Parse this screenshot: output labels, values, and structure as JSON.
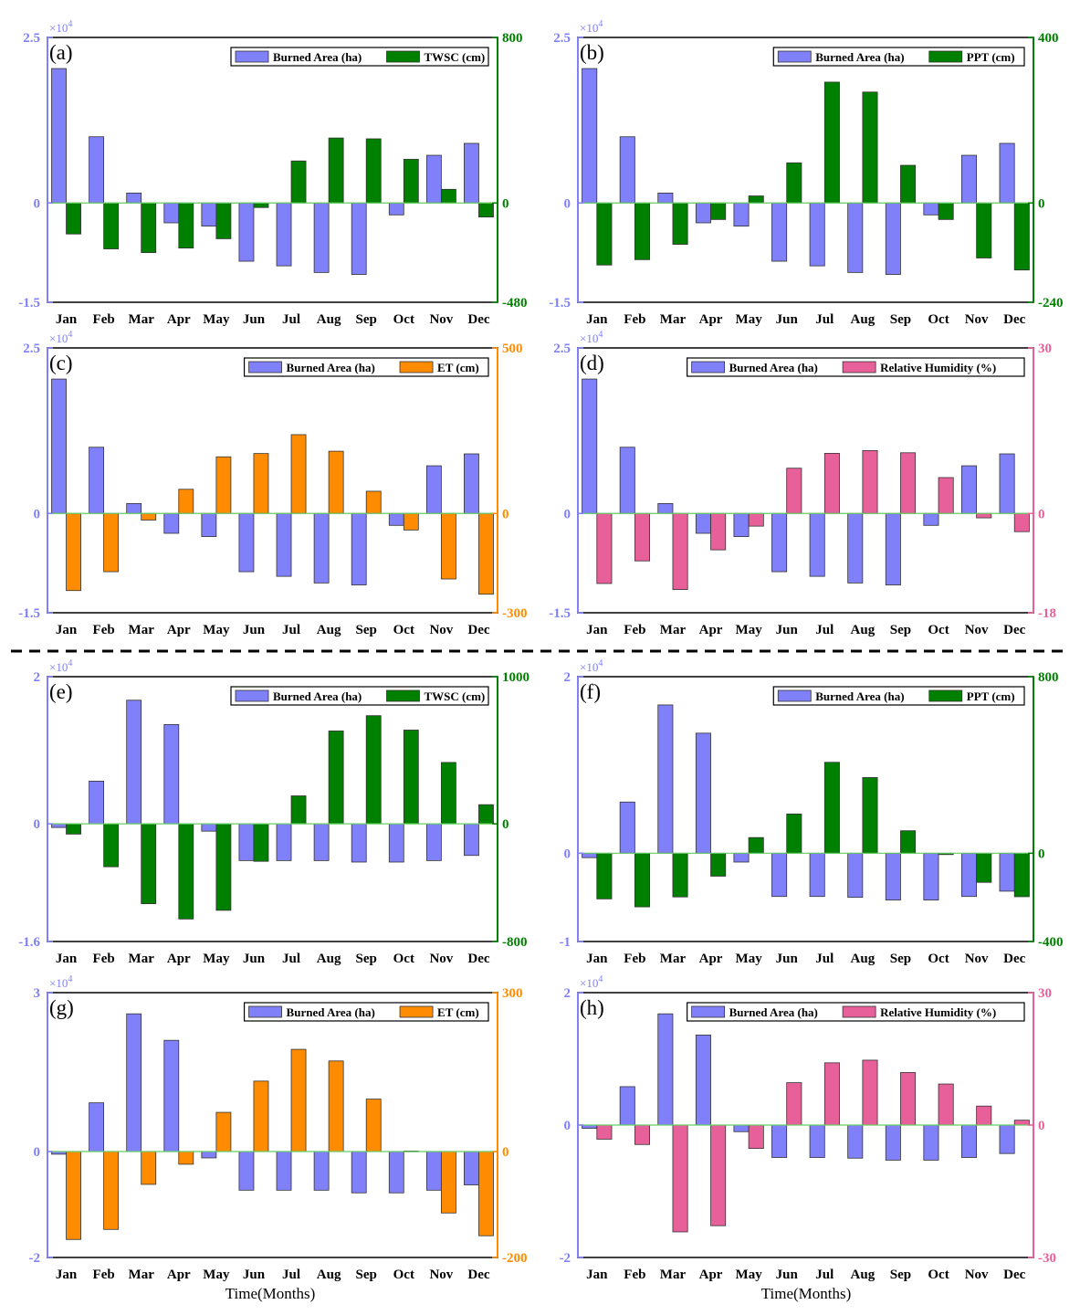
{
  "figure": {
    "x_axis_title": "Time(Months)",
    "primary_label": "Burned Area (ha)",
    "exponent_label": "×10",
    "exponent_power": "4",
    "primary_color": "#8080f8",
    "zero_line_color": "#66cc66"
  },
  "chart_data": [
    {
      "id": "a",
      "panel_label": "(a)",
      "type": "bar",
      "categories": [
        "Jan",
        "Feb",
        "Mar",
        "Apr",
        "May",
        "Jun",
        "Jul",
        "Aug",
        "Sep",
        "Oct",
        "Nov",
        "Dec"
      ],
      "series": [
        {
          "name": "Burned Area (ha)",
          "axis": "left",
          "color": "#8080f8",
          "values": [
            2.03,
            1.0,
            0.15,
            -0.3,
            -0.35,
            -0.88,
            -0.95,
            -1.05,
            -1.08,
            -0.18,
            0.72,
            0.9
          ]
        },
        {
          "name": "TWSC (cm)",
          "axis": "right",
          "color": "#008000",
          "values": [
            -150,
            -222,
            -240,
            -218,
            -173,
            -22,
            203,
            314,
            310,
            211,
            66,
            -68
          ]
        }
      ],
      "y_left": {
        "min": -1.5,
        "max": 2.5,
        "ticks": [
          -1.5,
          0,
          2.5
        ],
        "tick_labels": [
          "-1.5",
          "0",
          "2.5"
        ]
      },
      "y_right": {
        "min": -480,
        "max": 800,
        "ticks": [
          -480,
          0,
          800
        ],
        "tick_labels": [
          "-480",
          "0",
          "800"
        ]
      },
      "legend": "top-right"
    },
    {
      "id": "b",
      "panel_label": "(b)",
      "type": "bar",
      "categories": [
        "Jan",
        "Feb",
        "Mar",
        "Apr",
        "May",
        "Jun",
        "Jul",
        "Aug",
        "Sep",
        "Oct",
        "Nov",
        "Dec"
      ],
      "series": [
        {
          "name": "Burned Area (ha)",
          "axis": "left",
          "color": "#8080f8",
          "values": [
            2.03,
            1.0,
            0.15,
            -0.3,
            -0.35,
            -0.88,
            -0.95,
            -1.05,
            -1.08,
            -0.18,
            0.72,
            0.9
          ]
        },
        {
          "name": "PPT (cm)",
          "axis": "right",
          "color": "#008000",
          "values": [
            -150,
            -137,
            -100,
            -40,
            17,
            97,
            292,
            268,
            91,
            -40,
            -133,
            -162
          ]
        }
      ],
      "y_left": {
        "min": -1.5,
        "max": 2.5,
        "ticks": [
          -1.5,
          0,
          2.5
        ],
        "tick_labels": [
          "-1.5",
          "0",
          "2.5"
        ]
      },
      "y_right": {
        "min": -240,
        "max": 400,
        "ticks": [
          -240,
          0,
          400
        ],
        "tick_labels": [
          "-240",
          "0",
          "400"
        ]
      },
      "legend": "top-right"
    },
    {
      "id": "c",
      "panel_label": "(c)",
      "type": "bar",
      "categories": [
        "Jan",
        "Feb",
        "Mar",
        "Apr",
        "May",
        "Jun",
        "Jul",
        "Aug",
        "Sep",
        "Oct",
        "Nov",
        "Dec"
      ],
      "series": [
        {
          "name": "Burned Area (ha)",
          "axis": "left",
          "color": "#8080f8",
          "values": [
            2.03,
            1.0,
            0.15,
            -0.3,
            -0.35,
            -0.88,
            -0.95,
            -1.05,
            -1.08,
            -0.18,
            0.72,
            0.9
          ]
        },
        {
          "name": "ET (cm)",
          "axis": "right",
          "color": "#ff8c00",
          "values": [
            -233,
            -176,
            -20,
            73,
            171,
            181,
            238,
            188,
            67,
            -50,
            -198,
            -244
          ]
        }
      ],
      "y_left": {
        "min": -1.5,
        "max": 2.5,
        "ticks": [
          -1.5,
          0,
          2.5
        ],
        "tick_labels": [
          "-1.5",
          "0",
          "2.5"
        ]
      },
      "y_right": {
        "min": -300,
        "max": 500,
        "ticks": [
          -300,
          0,
          500
        ],
        "tick_labels": [
          "-300",
          "0",
          "500"
        ]
      },
      "legend": "top-right"
    },
    {
      "id": "d",
      "panel_label": "(d)",
      "type": "bar",
      "categories": [
        "Jan",
        "Feb",
        "Mar",
        "Apr",
        "May",
        "Jun",
        "Jul",
        "Aug",
        "Sep",
        "Oct",
        "Nov",
        "Dec"
      ],
      "series": [
        {
          "name": "Burned Area (ha)",
          "axis": "left",
          "color": "#8080f8",
          "values": [
            2.03,
            1.0,
            0.15,
            -0.3,
            -0.35,
            -0.88,
            -0.95,
            -1.05,
            -1.08,
            -0.18,
            0.72,
            0.9
          ]
        },
        {
          "name": "Relative Humidity (%)",
          "axis": "right",
          "color": "#e8609a",
          "values": [
            -12.7,
            -8.6,
            -13.8,
            -6.6,
            -2.3,
            8.2,
            10.9,
            11.4,
            11.0,
            6.5,
            -0.8,
            -3.3
          ]
        }
      ],
      "y_left": {
        "min": -1.5,
        "max": 2.5,
        "ticks": [
          -1.5,
          0,
          2.5
        ],
        "tick_labels": [
          "-1.5",
          "0",
          "2.5"
        ]
      },
      "y_right": {
        "min": -18,
        "max": 30,
        "ticks": [
          -18,
          0,
          30
        ],
        "tick_labels": [
          "-18",
          "0",
          "30"
        ]
      },
      "legend": "top-right"
    },
    {
      "id": "e",
      "panel_label": "(e)",
      "type": "bar",
      "categories": [
        "Jan",
        "Feb",
        "Mar",
        "Apr",
        "May",
        "Jun",
        "Jul",
        "Aug",
        "Sep",
        "Oct",
        "Nov",
        "Dec"
      ],
      "series": [
        {
          "name": "Burned Area (ha)",
          "axis": "left",
          "color": "#8080f8",
          "values": [
            -0.05,
            0.58,
            1.68,
            1.35,
            -0.1,
            -0.5,
            -0.5,
            -0.5,
            -0.52,
            -0.52,
            -0.5,
            -0.43
          ]
        },
        {
          "name": "TWSC (cm)",
          "axis": "right",
          "color": "#008000",
          "values": [
            -70,
            -292,
            -543,
            -647,
            -588,
            -255,
            190,
            631,
            735,
            637,
            417,
            130
          ]
        }
      ],
      "y_left": {
        "min": -1.6,
        "max": 2,
        "ticks": [
          -1.6,
          0,
          2
        ],
        "tick_labels": [
          "-1.6",
          "0",
          "2"
        ]
      },
      "y_right": {
        "min": -800,
        "max": 1000,
        "ticks": [
          -800,
          0,
          1000
        ],
        "tick_labels": [
          "-800",
          "0",
          "1000"
        ]
      },
      "legend": "top-right"
    },
    {
      "id": "f",
      "panel_label": "(f)",
      "type": "bar",
      "categories": [
        "Jan",
        "Feb",
        "Mar",
        "Apr",
        "May",
        "Jun",
        "Jul",
        "Aug",
        "Sep",
        "Oct",
        "Nov",
        "Dec"
      ],
      "series": [
        {
          "name": "Burned Area (ha)",
          "axis": "left",
          "color": "#8080f8",
          "values": [
            -0.05,
            0.58,
            1.68,
            1.36,
            -0.1,
            -0.49,
            -0.49,
            -0.5,
            -0.53,
            -0.53,
            -0.49,
            -0.43
          ]
        },
        {
          "name": "PPT (cm)",
          "axis": "right",
          "color": "#008000",
          "values": [
            -207,
            -243,
            -198,
            -104,
            71,
            178,
            412,
            343,
            102,
            -6,
            -132,
            -197
          ]
        }
      ],
      "y_left": {
        "min": -1,
        "max": 2,
        "ticks": [
          -1,
          0,
          2
        ],
        "tick_labels": [
          "-1",
          "0",
          "2"
        ]
      },
      "y_right": {
        "min": -400,
        "max": 800,
        "ticks": [
          -400,
          0,
          800
        ],
        "tick_labels": [
          "-400",
          "0",
          "800"
        ]
      },
      "legend": "top-right"
    },
    {
      "id": "g",
      "panel_label": "(g)",
      "type": "bar",
      "categories": [
        "Jan",
        "Feb",
        "Mar",
        "Apr",
        "May",
        "Jun",
        "Jul",
        "Aug",
        "Sep",
        "Oct",
        "Nov",
        "Dec"
      ],
      "series": [
        {
          "name": "Burned Area (ha)",
          "axis": "left",
          "color": "#8080f8",
          "values": [
            -0.05,
            0.92,
            2.6,
            2.1,
            -0.12,
            -0.73,
            -0.73,
            -0.73,
            -0.78,
            -0.78,
            -0.73,
            -0.63
          ]
        },
        {
          "name": "ET (cm)",
          "axis": "right",
          "color": "#ff8c00",
          "values": [
            -166,
            -147,
            -62,
            -24,
            74,
            133,
            193,
            171,
            99,
            1,
            -116,
            -159
          ]
        }
      ],
      "y_left": {
        "min": -2,
        "max": 3,
        "ticks": [
          -2,
          0,
          3
        ],
        "tick_labels": [
          "-2",
          "0",
          "3"
        ]
      },
      "y_right": {
        "min": -200,
        "max": 300,
        "ticks": [
          -200,
          0,
          300
        ],
        "tick_labels": [
          "-200",
          "0",
          "300"
        ]
      },
      "legend": "top-right"
    },
    {
      "id": "h",
      "panel_label": "(h)",
      "type": "bar",
      "categories": [
        "Jan",
        "Feb",
        "Mar",
        "Apr",
        "May",
        "Jun",
        "Jul",
        "Aug",
        "Sep",
        "Oct",
        "Nov",
        "Dec"
      ],
      "series": [
        {
          "name": "Burned Area (ha)",
          "axis": "left",
          "color": "#8080f8",
          "values": [
            -0.05,
            0.58,
            1.68,
            1.36,
            -0.1,
            -0.49,
            -0.49,
            -0.5,
            -0.53,
            -0.53,
            -0.49,
            -0.43
          ]
        },
        {
          "name": "Relative Humidity (%)",
          "axis": "right",
          "color": "#e8609a",
          "values": [
            -3.2,
            -4.4,
            -24.2,
            -22.8,
            -5.3,
            9.6,
            14.1,
            14.7,
            11.9,
            9.3,
            4.3,
            1.1
          ]
        }
      ],
      "y_left": {
        "min": -2,
        "max": 2,
        "ticks": [
          -2,
          0,
          2
        ],
        "tick_labels": [
          "-2",
          "0",
          "2"
        ]
      },
      "y_right": {
        "min": -30,
        "max": 30,
        "ticks": [
          -30,
          0,
          30
        ],
        "tick_labels": [
          "-30",
          "0",
          "30"
        ]
      },
      "legend": "top-right"
    }
  ]
}
